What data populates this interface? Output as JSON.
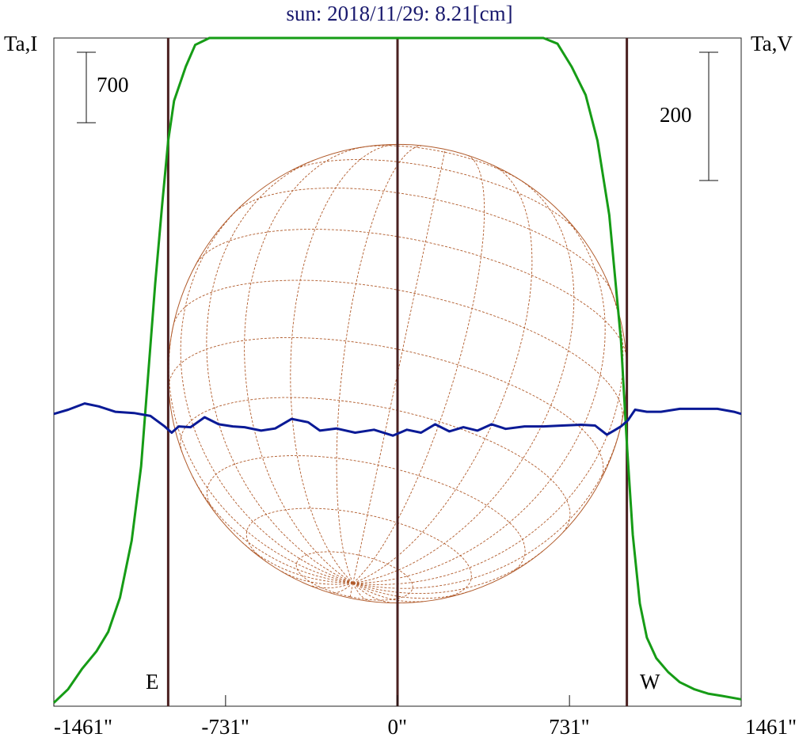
{
  "chart_data": {
    "type": "line",
    "title": "sun: 2018/11/29: 8.21[cm]",
    "left_axis_label": "Ta,I",
    "right_axis_label": "Ta,V",
    "scale_bar_left": "700",
    "scale_bar_right": "200",
    "limb_labels": {
      "east": "E",
      "west": "W"
    },
    "xlim": [
      -1461,
      1461
    ],
    "x_tick_labels": [
      "-1461\"",
      "-731\"",
      "0\"",
      "731\"",
      "1461\""
    ],
    "x_tick_values": [
      -1461,
      -731,
      0,
      731,
      1461
    ],
    "vertical_markers": [
      -975,
      0,
      975
    ],
    "solar_radius_arcsec": 975,
    "ylim_intensity": [
      0,
      5850
    ],
    "ylim_polarization": [
      -700,
      900
    ],
    "series": [
      {
        "color": "#169c16",
        "axis": "left",
        "x": [
          -1461,
          -1400,
          -1340,
          -1280,
          -1230,
          -1180,
          -1130,
          -1090,
          -1060,
          -1030,
          -1000,
          -975,
          -950,
          -920,
          -900,
          -860,
          -800,
          -730,
          -700,
          -640,
          -560,
          -480,
          -420,
          -360,
          -280,
          -200,
          -140,
          -80,
          -20,
          40,
          100,
          140,
          180,
          240,
          300,
          330,
          360,
          420,
          500,
          560,
          620,
          680,
          740,
          800,
          850,
          900,
          950,
          975,
          1000,
          1030,
          1060,
          1100,
          1150,
          1200,
          1260,
          1320,
          1380,
          1461
        ],
        "values": [
          30,
          150,
          330,
          480,
          650,
          950,
          1450,
          2100,
          2900,
          3700,
          4400,
          4950,
          5300,
          5480,
          5600,
          5790,
          6000,
          6140,
          6180,
          6300,
          6500,
          6600,
          6680,
          6760,
          6790,
          6830,
          6870,
          6900,
          6880,
          6940,
          6840,
          6680,
          6560,
          6520,
          6600,
          6660,
          6520,
          6300,
          6200,
          6080,
          5960,
          5800,
          5600,
          5350,
          4950,
          4300,
          3200,
          2300,
          1500,
          900,
          600,
          420,
          300,
          210,
          150,
          110,
          90,
          60
        ]
      },
      {
        "color": "#0a1a96",
        "axis": "right",
        "x": [
          -1461,
          -1400,
          -1330,
          -1270,
          -1200,
          -1120,
          -1050,
          -990,
          -960,
          -930,
          -880,
          -820,
          -760,
          -700,
          -650,
          -580,
          -520,
          -450,
          -380,
          -330,
          -260,
          -180,
          -100,
          -20,
          40,
          100,
          160,
          220,
          280,
          340,
          400,
          460,
          540,
          620,
          700,
          780,
          840,
          890,
          920,
          950,
          980,
          1010,
          1060,
          1120,
          1200,
          1280,
          1360,
          1430,
          1461
        ],
        "values": [
          0,
          10,
          25,
          18,
          5,
          2,
          -5,
          -30,
          -45,
          -30,
          -32,
          -8,
          -25,
          -30,
          -32,
          -40,
          -35,
          -12,
          -20,
          -40,
          -35,
          -45,
          -38,
          -52,
          -38,
          -45,
          -25,
          -42,
          -32,
          -40,
          -25,
          -36,
          -30,
          -30,
          -28,
          -26,
          -28,
          -50,
          -40,
          -30,
          -15,
          10,
          5,
          5,
          12,
          12,
          12,
          5,
          0
        ]
      }
    ]
  }
}
